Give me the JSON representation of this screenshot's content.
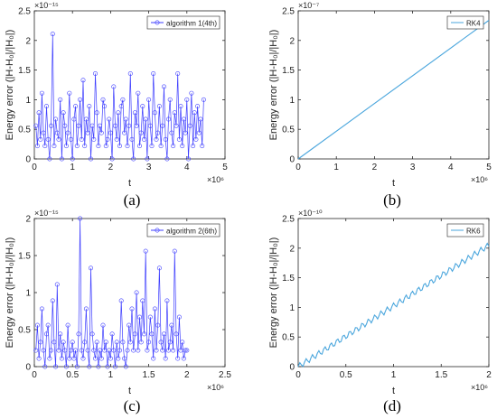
{
  "panels": [
    {
      "id": "a",
      "caption": "(a)",
      "chart": {
        "type": "line",
        "marker": "circle",
        "color": "#3f3fff",
        "xlabel": "t",
        "ylabel": "Energy error (|H-H₀|/|H₀|)",
        "xlim": [
          0,
          5
        ],
        "ylim": [
          0,
          2.5
        ],
        "xticks": [
          "0",
          "1",
          "2",
          "3",
          "4",
          "5"
        ],
        "yticks": [
          "0",
          "0.5",
          "1",
          "1.5",
          "2",
          "2.5"
        ],
        "xexponent": "×10⁶",
        "yexponent": "×10⁻¹⁵",
        "legend": "algorithm 1(4th)",
        "legend_position": "top-right",
        "series": [
          {
            "name": "algorithm 1(4th)",
            "x_step": 0.04,
            "x_start": 0.04,
            "values": [
              0.56,
              0.22,
              0.78,
              0.33,
              1.11,
              0.44,
              0.22,
              0.89,
              0.33,
              0,
              0.56,
              2.11,
              0.22,
              0.67,
              0.44,
              0.33,
              1.0,
              0,
              0.78,
              0.56,
              0.22,
              0.44,
              1.11,
              0.33,
              0,
              0.67,
              0.89,
              0.22,
              0.56,
              1.0,
              0.33,
              1.33,
              0.22,
              0.67,
              0.44,
              0.89,
              0,
              0.56,
              0.33,
              1.44,
              0.78,
              0.22,
              0.56,
              0.44,
              1.0,
              0.89,
              0.22,
              0.33,
              0.67,
              0.44,
              0,
              1.22,
              0.56,
              0.33,
              0.78,
              0.22,
              0.89,
              1.0,
              0.44,
              0.67,
              0.22,
              0.56,
              1.44,
              0.33,
              0,
              0.78,
              0.56,
              1.11,
              0.22,
              0.44,
              0.89,
              0.33,
              0.67,
              0,
              1.0,
              0.56,
              0.22,
              1.44,
              0.78,
              0.33,
              0.44,
              0.89,
              0.22,
              0.56,
              1.22,
              0.33,
              0,
              0.67,
              1.0,
              0.44,
              0.22,
              0.78,
              0.56,
              1.44,
              0.33,
              0.89,
              0.22,
              0.67,
              0.44,
              1.0,
              0,
              0.56,
              1.11,
              0.22,
              0.78,
              0.33,
              0.89,
              0.44,
              0.67,
              0.22,
              1.0
            ]
          }
        ]
      }
    },
    {
      "id": "b",
      "caption": "(b)",
      "chart": {
        "type": "line",
        "marker": "none",
        "color": "#4aa6dd",
        "xlabel": "t",
        "ylabel": "Energy error (|H-H₀|/|H₀|)",
        "xlim": [
          0,
          5
        ],
        "ylim": [
          0,
          2.5
        ],
        "xticks": [
          "0",
          "1",
          "2",
          "3",
          "4",
          "5"
        ],
        "yticks": [
          "0",
          "0.5",
          "1",
          "1.5",
          "2",
          "2.5"
        ],
        "xexponent": "×10⁶",
        "yexponent": "×10⁻⁷",
        "legend": "RK4",
        "legend_position": "top-right",
        "series": [
          {
            "name": "RK4",
            "x": [
              0,
              5
            ],
            "values": [
              0,
              2.34
            ]
          }
        ]
      }
    },
    {
      "id": "c",
      "caption": "(c)",
      "chart": {
        "type": "line",
        "marker": "circle",
        "color": "#3f3fff",
        "xlabel": "t",
        "ylabel": "Energy error (|H-H₀|/|H₀|)",
        "xlim": [
          0,
          2.5
        ],
        "ylim": [
          0,
          2
        ],
        "xticks": [
          "0",
          "0.5",
          "1",
          "1.5",
          "2",
          "2.5"
        ],
        "yticks": [
          "0",
          "0.5",
          "1",
          "1.5",
          "2"
        ],
        "xexponent": "×10⁶",
        "yexponent": "×10⁻¹⁵",
        "legend": "algorithm 2(6th)",
        "legend_position": "top-right",
        "series": [
          {
            "name": "algorithm 2(6th)",
            "x_step": 0.02,
            "x_start": 0.02,
            "values": [
              0.22,
              0.56,
              0.11,
              0.33,
              0.78,
              0.22,
              0,
              0.44,
              0.56,
              0.11,
              0.22,
              0.89,
              0.33,
              0,
              1.11,
              0.22,
              0.44,
              0.11,
              0.33,
              0.22,
              0,
              0.56,
              0.11,
              0.22,
              0.33,
              0.11,
              0.22,
              0,
              0.44,
              2.0,
              0.22,
              0.11,
              0.33,
              0.78,
              0.22,
              0,
              1.33,
              0.44,
              0.22,
              0.11,
              0.33,
              0,
              0.22,
              0.11,
              0.56,
              0.22,
              0.33,
              0,
              0.22,
              0.11,
              0.44,
              0.22,
              0,
              0.33,
              0.11,
              0.22,
              0.89,
              0.33,
              0.11,
              0,
              0.22,
              0.56,
              0.33,
              0.78,
              0.22,
              0.44,
              1.0,
              0.22,
              0.67,
              0.33,
              0.89,
              0.44,
              1.56,
              0.22,
              0.33,
              0.67,
              0.44,
              0.11,
              0.78,
              0.22,
              0.56,
              1.33,
              0.33,
              0.22,
              0.44,
              0.11,
              0.89,
              0.22,
              0.33,
              0.56,
              0.22,
              1.56,
              0.44,
              0.11,
              0.67,
              0.22,
              0.33,
              0.11,
              0.22,
              0.22
            ]
          }
        ]
      }
    },
    {
      "id": "d",
      "caption": "(d)",
      "chart": {
        "type": "line",
        "marker": "none",
        "color": "#4aa6dd",
        "wiggle": true,
        "xlabel": "t",
        "ylabel": "Energy error (|H-H₀|/|H₀|)",
        "xlim": [
          0,
          2
        ],
        "ylim": [
          0,
          2.5
        ],
        "xticks": [
          "0",
          "0.5",
          "1",
          "1.5",
          "2"
        ],
        "yticks": [
          "0",
          "0.5",
          "1",
          "1.5",
          "2",
          "2.5"
        ],
        "xexponent": "×10⁶",
        "yexponent": "×10⁻¹⁰",
        "legend": "RK6",
        "legend_position": "top-right",
        "series": [
          {
            "name": "RK6",
            "x": [
              0,
              2
            ],
            "values": [
              0,
              2.05
            ]
          }
        ]
      }
    }
  ]
}
